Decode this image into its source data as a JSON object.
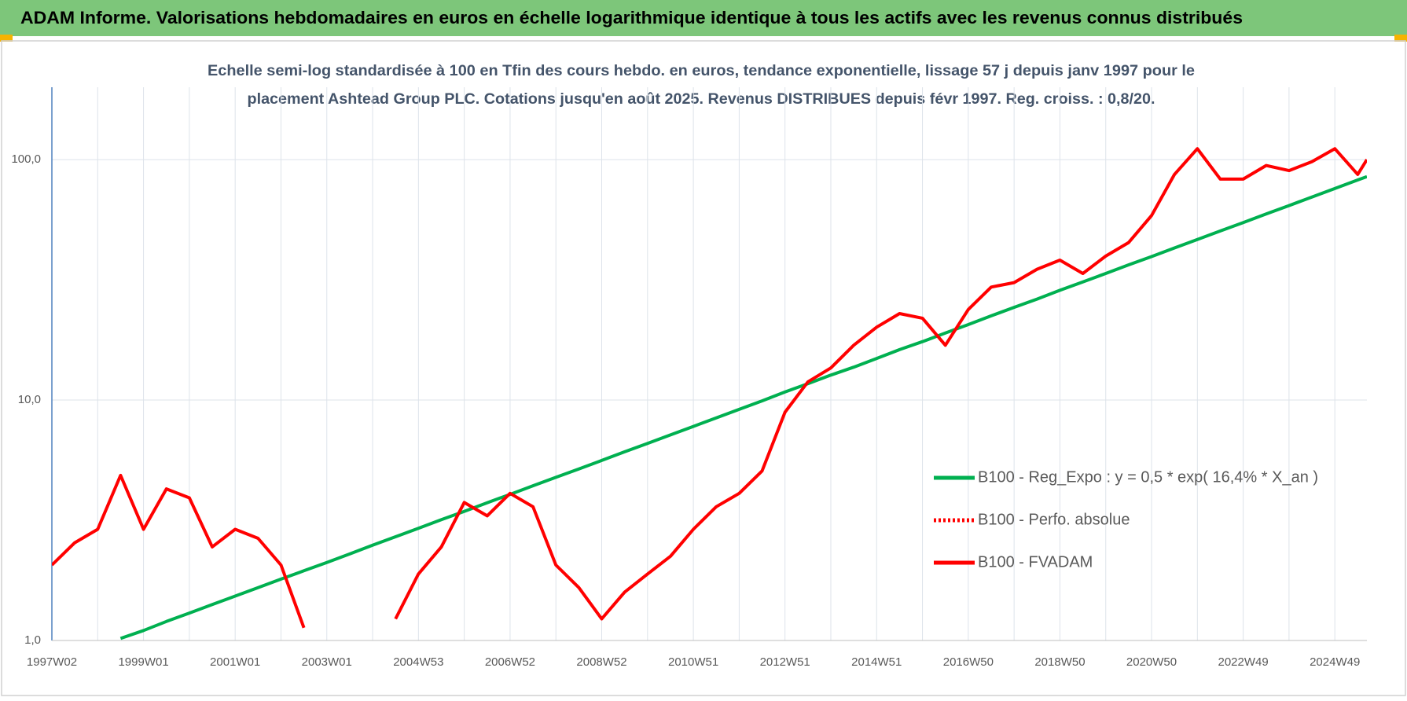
{
  "chart_data": {
    "type": "line",
    "title": "ADAM Informe. Valorisations hebdomadaires en euros en échelle logarithmique identique à tous les actifs avec les revenus connus distribués",
    "subtitle": [
      "Echelle semi-log standardisée à 100 en Tfin des cours hebdo. en euros, tendance exponentielle, lissage 57 j depuis janv 1997 pour le",
      "placement Ashtead Group PLC. Cotations jusqu'en août 2025.  Revenus DISTRIBUES depuis févr 1997. Reg. croiss. : 0,8/20."
    ],
    "x": [
      1997.0,
      1997.5,
      1998.0,
      1998.5,
      1999.0,
      1999.5,
      2000.0,
      2000.5,
      2001.0,
      2001.5,
      2002.0,
      2002.5,
      2003.0,
      2003.5,
      2004.0,
      2004.5,
      2005.0,
      2005.5,
      2006.0,
      2006.5,
      2007.0,
      2007.5,
      2008.0,
      2008.5,
      2009.0,
      2009.5,
      2010.0,
      2010.5,
      2011.0,
      2011.5,
      2012.0,
      2012.5,
      2013.0,
      2013.5,
      2014.0,
      2014.5,
      2015.0,
      2015.5,
      2016.0,
      2016.5,
      2017.0,
      2017.5,
      2018.0,
      2018.5,
      2019.0,
      2019.5,
      2020.0,
      2020.5,
      2021.0,
      2021.5,
      2022.0,
      2022.5,
      2023.0,
      2023.5,
      2024.0,
      2024.5,
      2025.0,
      2025.5,
      2025.7
    ],
    "series": [
      {
        "name": "B100 - Reg_Expo : y = 0,5 * exp( 16,4% *  X_an )",
        "color": "#00b050",
        "dash": "solid",
        "values": [
          null,
          null,
          null,
          1.02,
          1.1,
          1.2,
          1.3,
          1.41,
          1.53,
          1.66,
          1.8,
          1.95,
          2.11,
          2.29,
          2.49,
          2.7,
          2.93,
          3.18,
          3.44,
          3.74,
          4.05,
          4.4,
          4.77,
          5.17,
          5.61,
          6.09,
          6.6,
          7.16,
          7.77,
          8.43,
          9.15,
          9.92,
          10.8,
          11.7,
          12.7,
          13.7,
          14.9,
          16.2,
          17.5,
          19.0,
          20.6,
          22.4,
          24.3,
          26.3,
          28.6,
          31.0,
          33.6,
          36.5,
          39.5,
          42.9,
          46.5,
          50.5,
          54.7,
          59.4,
          64.4,
          69.9,
          75.8,
          82.3,
          85.0
        ]
      },
      {
        "name": "B100 - Perfo. absolue",
        "color": "#ff0000",
        "dash": "dotted",
        "values": [
          null,
          null,
          null,
          null,
          null,
          null,
          null,
          null,
          null,
          null,
          null,
          null,
          null,
          null,
          null,
          null,
          null,
          null,
          null,
          null,
          null,
          null,
          null,
          null,
          null,
          null,
          null,
          null,
          null,
          null,
          null,
          null,
          null,
          null,
          null,
          null,
          null,
          null,
          null,
          null,
          null,
          null,
          null,
          null,
          null,
          null,
          null,
          null,
          null,
          null,
          null,
          null,
          null,
          null,
          null,
          null,
          null,
          null,
          null
        ]
      },
      {
        "name": "B100 - FVADAM",
        "color": "#ff0000",
        "dash": "solid",
        "values": [
          2.06,
          2.55,
          2.9,
          4.86,
          2.9,
          4.27,
          3.92,
          2.45,
          2.9,
          2.66,
          2.06,
          1.13,
          null,
          null,
          null,
          1.23,
          1.89,
          2.45,
          3.75,
          3.3,
          4.09,
          3.6,
          2.06,
          1.66,
          1.23,
          1.59,
          1.89,
          2.24,
          2.9,
          3.6,
          4.09,
          5.07,
          8.9,
          11.9,
          13.6,
          16.9,
          20.1,
          22.9,
          21.9,
          16.9,
          23.8,
          29.5,
          30.8,
          35,
          38.2,
          33.6,
          39.7,
          45.2,
          58.5,
          86.8,
          111,
          83,
          83,
          94.5,
          90,
          98,
          111,
          86.8,
          100
        ]
      }
    ],
    "xlim": [
      1997.0,
      2025.7
    ],
    "xticks": [
      {
        "value": 1997,
        "label": "1997W02"
      },
      {
        "value": 1999,
        "label": "1999W01"
      },
      {
        "value": 2001,
        "label": "2001W01"
      },
      {
        "value": 2003,
        "label": "2003W01"
      },
      {
        "value": 2005,
        "label": "2004W53"
      },
      {
        "value": 2007,
        "label": "2006W52"
      },
      {
        "value": 2009,
        "label": "2008W52"
      },
      {
        "value": 2011,
        "label": "2010W51"
      },
      {
        "value": 2013,
        "label": "2012W51"
      },
      {
        "value": 2015,
        "label": "2014W51"
      },
      {
        "value": 2017,
        "label": "2016W50"
      },
      {
        "value": 2019,
        "label": "2018W50"
      },
      {
        "value": 2021,
        "label": "2020W50"
      },
      {
        "value": 2023,
        "label": "2022W49"
      },
      {
        "value": 2025,
        "label": "2024W49"
      }
    ],
    "xminor": [
      1998,
      2000,
      2002,
      2004,
      2006,
      2008,
      2010,
      2012,
      2014,
      2016,
      2018,
      2020,
      2022,
      2024
    ],
    "ylim": [
      1,
      200
    ],
    "yticks": [
      {
        "value": 1,
        "label": "1,0"
      },
      {
        "value": 10,
        "label": "10,0"
      },
      {
        "value": 100,
        "label": "100,0"
      }
    ],
    "log_scale": true,
    "grid": true,
    "legend": "right"
  }
}
